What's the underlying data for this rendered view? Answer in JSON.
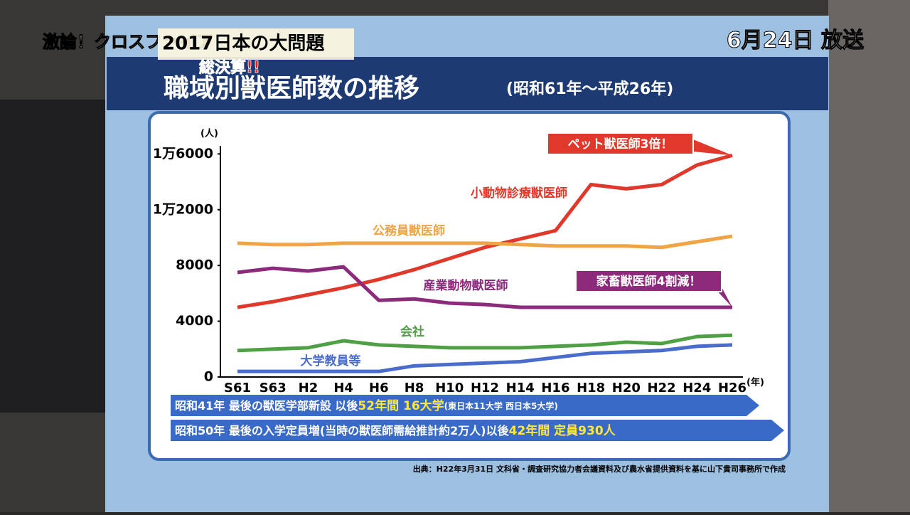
{
  "overlay": {
    "show_logo": "激論！クロスファイア",
    "show_topic": "2017日本の大問題",
    "show_tag": "総決算!!",
    "broadcast": "6月24日 放送"
  },
  "chart_data": {
    "type": "line",
    "title": "職域別獣医師数の推移",
    "subtitle": "(昭和61年〜平成26年)",
    "y_unit": "(人)",
    "x_unit": "(年)",
    "categories": [
      "S61",
      "S63",
      "H2",
      "H4",
      "H6",
      "H8",
      "H10",
      "H12",
      "H14",
      "H16",
      "H18",
      "H20",
      "H22",
      "H24",
      "H26"
    ],
    "ylim": [
      0,
      17000
    ],
    "yticks": [
      0,
      4000,
      8000,
      {
        "value": 12000,
        "label": "1万2000"
      },
      {
        "value": 16000,
        "label": "1万6000"
      }
    ],
    "series": [
      {
        "name": "小動物診療獣医師",
        "color": "#e0382a",
        "values": [
          5000,
          5400,
          5900,
          6400,
          7000,
          7700,
          8500,
          9300,
          9900,
          10500,
          13800,
          13500,
          13800,
          15200,
          15900
        ]
      },
      {
        "name": "公務員獣医師",
        "color": "#efa445",
        "values": [
          9600,
          9500,
          9500,
          9600,
          9600,
          9600,
          9600,
          9600,
          9500,
          9400,
          9400,
          9400,
          9300,
          9700,
          10100
        ]
      },
      {
        "name": "産業動物獣医師",
        "color": "#8c2a7c",
        "values": [
          7500,
          7800,
          7600,
          7900,
          5500,
          5600,
          5300,
          5200,
          5000,
          5000,
          5000,
          5000,
          5000,
          5000,
          5000
        ]
      },
      {
        "name": "会社",
        "color": "#4fa044",
        "values": [
          1900,
          2000,
          2100,
          2600,
          2300,
          2200,
          2100,
          2100,
          2100,
          2200,
          2300,
          2500,
          2400,
          2900,
          3000
        ]
      },
      {
        "name": "大学教員等",
        "color": "#4a6ccc",
        "values": [
          400,
          400,
          400,
          400,
          400,
          800,
          900,
          1000,
          1100,
          1400,
          1700,
          1800,
          1900,
          2200,
          2300
        ]
      }
    ],
    "annotations": [
      "ペット獣医師3倍！",
      "家畜獣医師4割減！"
    ],
    "banners": [
      [
        "昭和41年 最後の獣医学部新設 以後",
        "52年間 16大学",
        "(東日本11大学 西日本5大学)"
      ],
      [
        "昭和50年 最後の入学定員増(当時の獣医師需給推計約2万人)以後",
        "42年間 定員930人"
      ]
    ],
    "source": "出典：H22年3月31日 文科省・調査研究協力者会議資料及び農水省提供資料を基に山下貴司事務所で作成"
  }
}
